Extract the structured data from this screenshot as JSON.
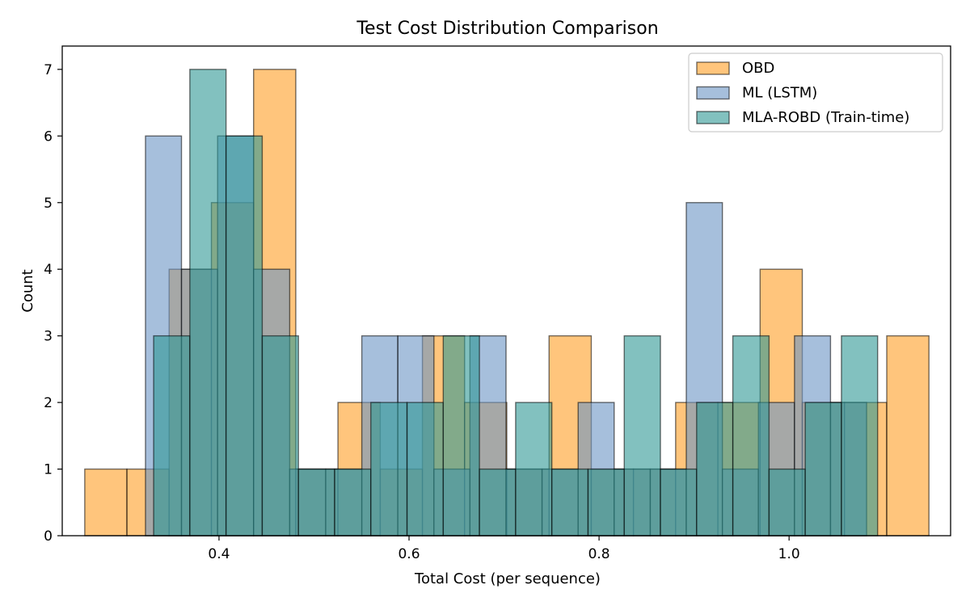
{
  "chart_data": {
    "type": "bar",
    "subtype": "overlapping-histogram",
    "title": "Test Cost Distribution Comparison",
    "xlabel": "Total Cost (per sequence)",
    "ylabel": "Count",
    "xlim": [
      0.235,
      1.17
    ],
    "ylim": [
      0,
      7.35
    ],
    "xticks": [
      0.4,
      0.6,
      0.8,
      1.0
    ],
    "xtick_labels": [
      "0.4",
      "0.6",
      "0.8",
      "1.0"
    ],
    "yticks": [
      0,
      1,
      2,
      3,
      4,
      5,
      6,
      7
    ],
    "ytick_labels": [
      "0",
      "1",
      "2",
      "3",
      "4",
      "5",
      "6",
      "7"
    ],
    "grid": false,
    "legend_position": "top-right",
    "series": [
      {
        "name": "OBD",
        "color": "#ff9f24",
        "alpha": 0.6,
        "bin_edges": [
          0.2587,
          0.3031,
          0.3475,
          0.392,
          0.4364,
          0.4808,
          0.5252,
          0.5697,
          0.6141,
          0.6585,
          0.7029,
          0.7474,
          0.7918,
          0.8362,
          0.8806,
          0.9251,
          0.9695,
          1.0139,
          1.0583,
          1.1028,
          1.1472
        ],
        "counts": [
          1,
          1,
          4,
          5,
          7,
          1,
          2,
          1,
          3,
          2,
          1,
          3,
          1,
          1,
          2,
          2,
          4,
          2,
          2,
          3
        ]
      },
      {
        "name": "ML (LSTM)",
        "color": "#6b95c4",
        "alpha": 0.6,
        "bin_edges": [
          0.3226,
          0.3605,
          0.3985,
          0.4364,
          0.4744,
          0.5123,
          0.5503,
          0.5882,
          0.6262,
          0.6641,
          0.7021,
          0.74,
          0.778,
          0.8159,
          0.8539,
          0.8918,
          0.9298,
          0.9677,
          1.0057,
          1.0436,
          1.0816
        ],
        "counts": [
          6,
          4,
          6,
          4,
          1,
          1,
          3,
          3,
          1,
          3,
          1,
          1,
          2,
          1,
          1,
          5,
          1,
          2,
          3,
          2
        ]
      },
      {
        "name": "MLA-ROBD (Train-time)",
        "color": "#2f9894",
        "alpha": 0.6,
        "bin_edges": [
          0.3312,
          0.3693,
          0.4074,
          0.4455,
          0.4836,
          0.5217,
          0.5598,
          0.5979,
          0.636,
          0.6741,
          0.7122,
          0.7503,
          0.7884,
          0.8265,
          0.8646,
          0.9027,
          0.9408,
          0.9789,
          1.017,
          1.0551,
          1.0932
        ],
        "counts": [
          3,
          7,
          6,
          3,
          1,
          1,
          2,
          2,
          3,
          1,
          2,
          1,
          1,
          3,
          1,
          2,
          3,
          1,
          2,
          3
        ]
      }
    ]
  }
}
